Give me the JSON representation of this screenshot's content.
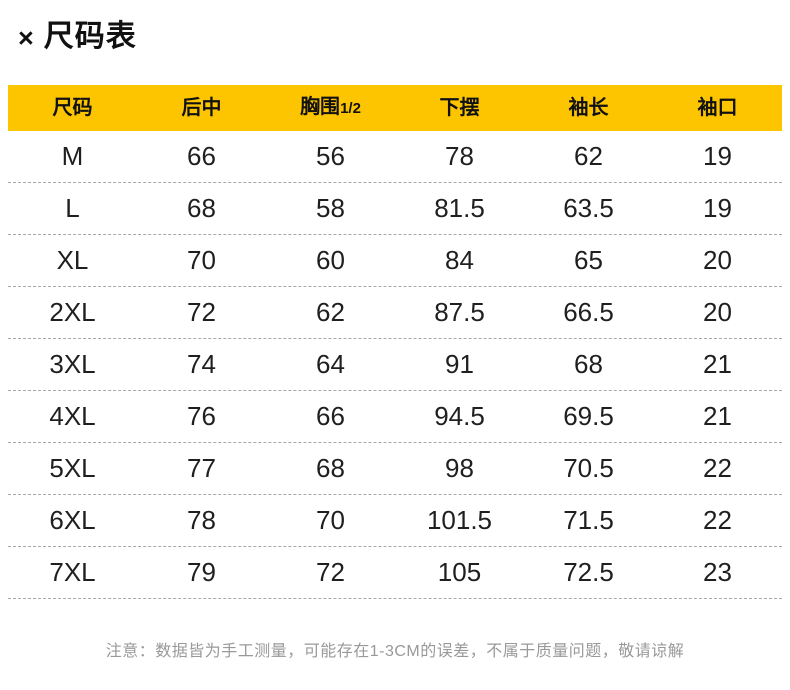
{
  "title": {
    "icon": "×",
    "text": "尺码表"
  },
  "colors": {
    "header_bg": "#FCC500",
    "header_text": "#111111",
    "body_text": "#1f1f1f",
    "divider": "#a8a8a8",
    "note_text": "#999999",
    "background": "#ffffff"
  },
  "table": {
    "headers": [
      {
        "main": "尺码",
        "sub": ""
      },
      {
        "main": "后中",
        "sub": ""
      },
      {
        "main": "胸围",
        "sub": "1/2"
      },
      {
        "main": "下摆",
        "sub": ""
      },
      {
        "main": "袖长",
        "sub": ""
      },
      {
        "main": "袖口",
        "sub": ""
      }
    ],
    "rows": [
      {
        "size": "M",
        "values": [
          "66",
          "56",
          "78",
          "62",
          "19"
        ]
      },
      {
        "size": "L",
        "values": [
          "68",
          "58",
          "81.5",
          "63.5",
          "19"
        ]
      },
      {
        "size": "XL",
        "values": [
          "70",
          "60",
          "84",
          "65",
          "20"
        ]
      },
      {
        "size": "2XL",
        "values": [
          "72",
          "62",
          "87.5",
          "66.5",
          "20"
        ]
      },
      {
        "size": "3XL",
        "values": [
          "74",
          "64",
          "91",
          "68",
          "21"
        ]
      },
      {
        "size": "4XL",
        "values": [
          "76",
          "66",
          "94.5",
          "69.5",
          "21"
        ]
      },
      {
        "size": "5XL",
        "values": [
          "77",
          "68",
          "98",
          "70.5",
          "22"
        ]
      },
      {
        "size": "6XL",
        "values": [
          "78",
          "70",
          "101.5",
          "71.5",
          "22"
        ]
      },
      {
        "size": "7XL",
        "values": [
          "79",
          "72",
          "105",
          "72.5",
          "23"
        ]
      }
    ]
  },
  "note": "注意：数据皆为手工测量，可能存在1-3CM的误差，不属于质量问题，敬请谅解"
}
